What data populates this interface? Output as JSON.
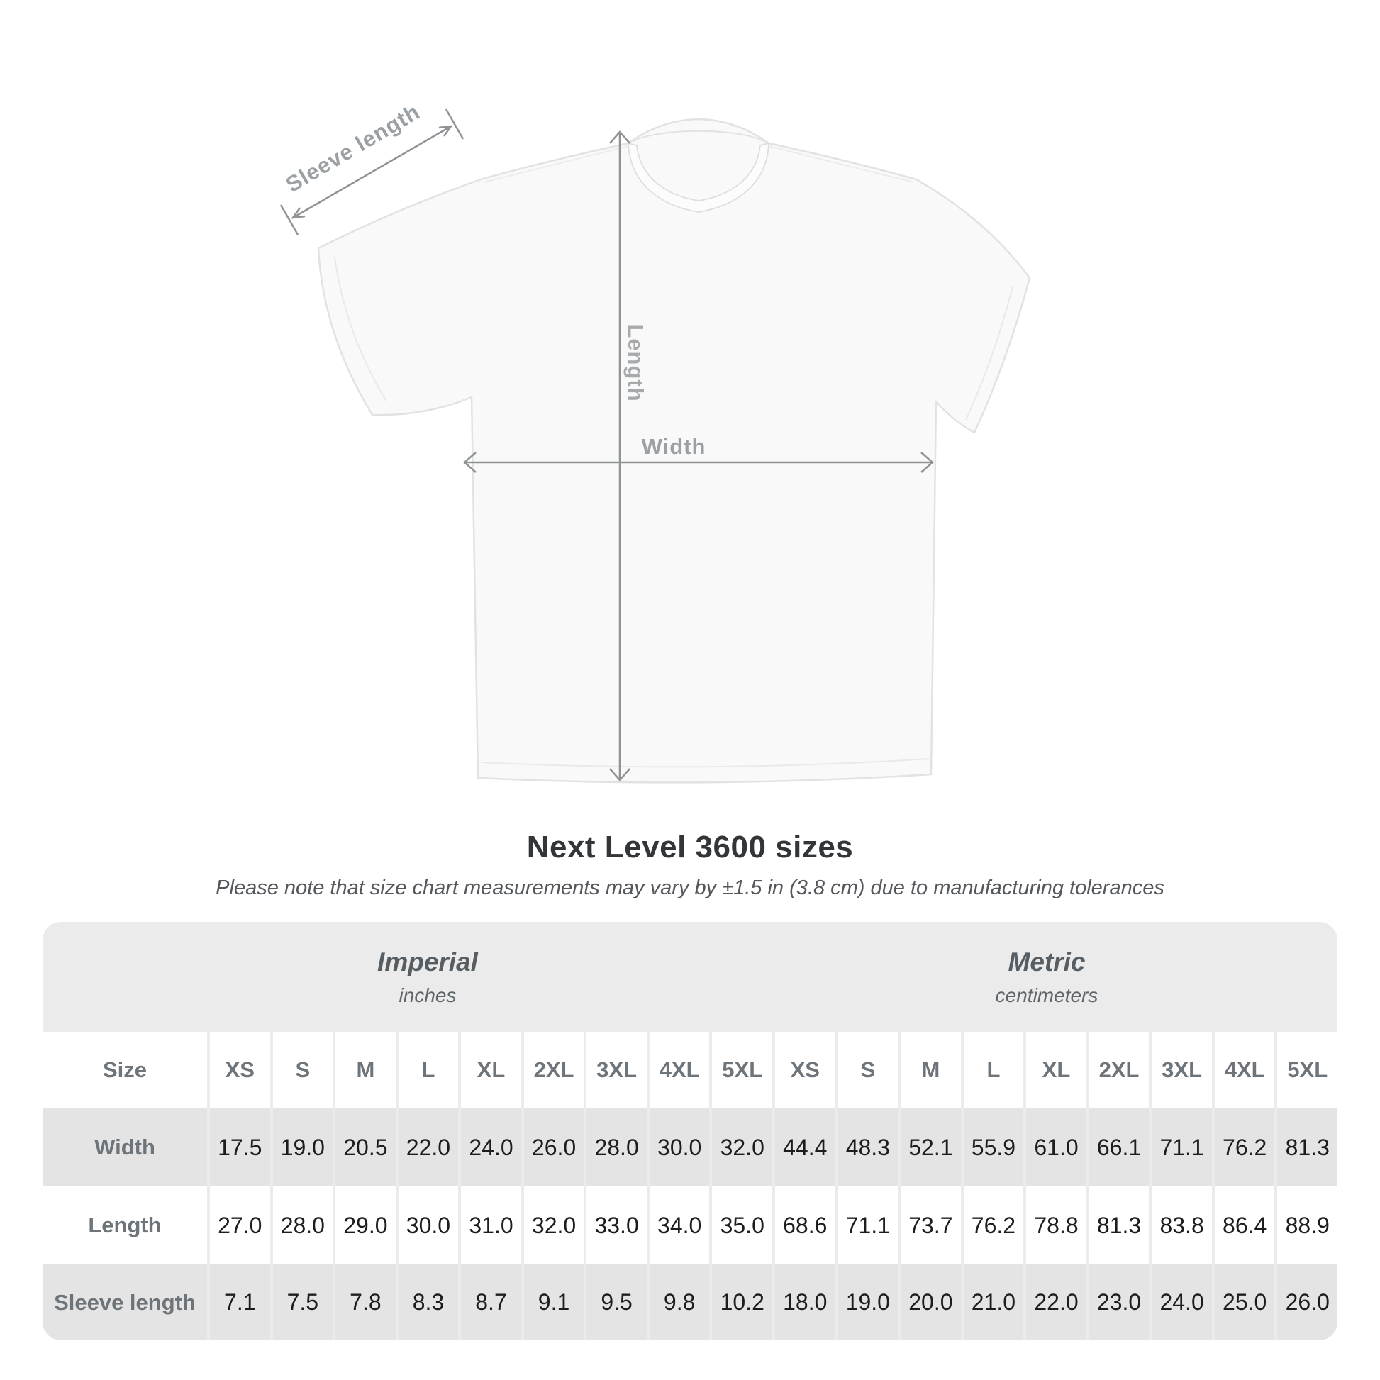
{
  "diagram": {
    "labels": {
      "sleeve": "Sleeve length",
      "length": "Length",
      "width": "Width"
    }
  },
  "heading": {
    "title": "Next Level 3600 sizes",
    "subtitle": "Please note that size chart measurements may vary by ±1.5 in (3.8 cm) due to manufacturing tolerances"
  },
  "table": {
    "unit_groups": [
      {
        "label": "Imperial",
        "sublabel": "inches"
      },
      {
        "label": "Metric",
        "sublabel": "centimeters"
      }
    ],
    "size_header": {
      "label": "Size",
      "columns": [
        "XS",
        "S",
        "M",
        "L",
        "XL",
        "2XL",
        "3XL",
        "4XL",
        "5XL",
        "XS",
        "S",
        "M",
        "L",
        "XL",
        "2XL",
        "3XL",
        "4XL",
        "5XL"
      ]
    },
    "rows": [
      {
        "label": "Width",
        "values": [
          "17.5",
          "19.0",
          "20.5",
          "22.0",
          "24.0",
          "26.0",
          "28.0",
          "30.0",
          "32.0",
          "44.4",
          "48.3",
          "52.1",
          "55.9",
          "61.0",
          "66.1",
          "71.1",
          "76.2",
          "81.3"
        ]
      },
      {
        "label": "Length",
        "values": [
          "27.0",
          "28.0",
          "29.0",
          "30.0",
          "31.0",
          "32.0",
          "33.0",
          "34.0",
          "35.0",
          "68.6",
          "71.1",
          "73.7",
          "76.2",
          "78.8",
          "81.3",
          "83.8",
          "86.4",
          "88.9"
        ]
      },
      {
        "label": "Sleeve length",
        "values": [
          "7.1",
          "7.5",
          "7.8",
          "8.3",
          "8.7",
          "9.1",
          "9.5",
          "9.8",
          "10.2",
          "18.0",
          "19.0",
          "20.0",
          "21.0",
          "22.0",
          "23.0",
          "24.0",
          "25.0",
          "26.0"
        ]
      }
    ]
  },
  "chart_data": {
    "type": "table",
    "title": "Next Level 3600 sizes",
    "columns": [
      "XS",
      "S",
      "M",
      "L",
      "XL",
      "2XL",
      "3XL",
      "4XL",
      "5XL"
    ],
    "series": [
      {
        "name": "Width (inches)",
        "values": [
          17.5,
          19.0,
          20.5,
          22.0,
          24.0,
          26.0,
          28.0,
          30.0,
          32.0
        ]
      },
      {
        "name": "Length (inches)",
        "values": [
          27.0,
          28.0,
          29.0,
          30.0,
          31.0,
          32.0,
          33.0,
          34.0,
          35.0
        ]
      },
      {
        "name": "Sleeve length (inches)",
        "values": [
          7.1,
          7.5,
          7.8,
          8.3,
          8.7,
          9.1,
          9.5,
          9.8,
          10.2
        ]
      },
      {
        "name": "Width (cm)",
        "values": [
          44.4,
          48.3,
          52.1,
          55.9,
          61.0,
          66.1,
          71.1,
          76.2,
          81.3
        ]
      },
      {
        "name": "Length (cm)",
        "values": [
          68.6,
          71.1,
          73.7,
          76.2,
          78.8,
          81.3,
          83.8,
          86.4,
          88.9
        ]
      },
      {
        "name": "Sleeve length (cm)",
        "values": [
          18.0,
          19.0,
          20.0,
          21.0,
          22.0,
          23.0,
          24.0,
          25.0,
          26.0
        ]
      }
    ]
  },
  "colors": {
    "table_bg": "#ebebeb",
    "row_stripe": "#e4e4e5",
    "number_text": "#1b1d1f",
    "label_gray": "#6d747a",
    "diagram_gray": "#9aa0a3",
    "arrow_gray": "#8f9396",
    "title_text": "#333639"
  }
}
